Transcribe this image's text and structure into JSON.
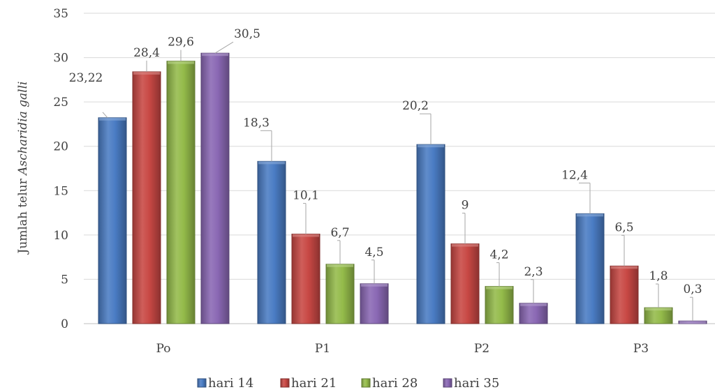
{
  "chart_data": {
    "type": "bar",
    "categories": [
      "Po",
      "P1",
      "P2",
      "P3"
    ],
    "series": [
      {
        "name": "hari 14",
        "values": [
          23.22,
          18.3,
          20.2,
          12.4
        ],
        "labels": [
          "23,22",
          "18,3",
          "20,2",
          "12,4"
        ],
        "color": "#4a7cc4"
      },
      {
        "name": "hari 21",
        "values": [
          28.4,
          10.1,
          9,
          6.5
        ],
        "labels": [
          "28,4",
          "10,1",
          "9",
          "6,5"
        ],
        "color": "#c84844"
      },
      {
        "name": "hari 28",
        "values": [
          29.6,
          6.7,
          4.2,
          1.8
        ],
        "labels": [
          "29,6",
          "6,7",
          "4,2",
          "1,8"
        ],
        "color": "#94bb4a"
      },
      {
        "name": "hari 35",
        "values": [
          30.5,
          4.5,
          2.3,
          0.3
        ],
        "labels": [
          "30,5",
          "4,5",
          "2,3",
          "0,3"
        ],
        "color": "#8a68b4"
      }
    ],
    "ylabel_prefix": "Jumlah telur ",
    "ylabel_italic": "Ascharidia galli",
    "ylim": [
      0,
      35
    ],
    "yticks": [
      "0",
      "5",
      "10",
      "15",
      "20",
      "25",
      "30",
      "35"
    ],
    "grid": true,
    "legend_position": "bottom"
  }
}
